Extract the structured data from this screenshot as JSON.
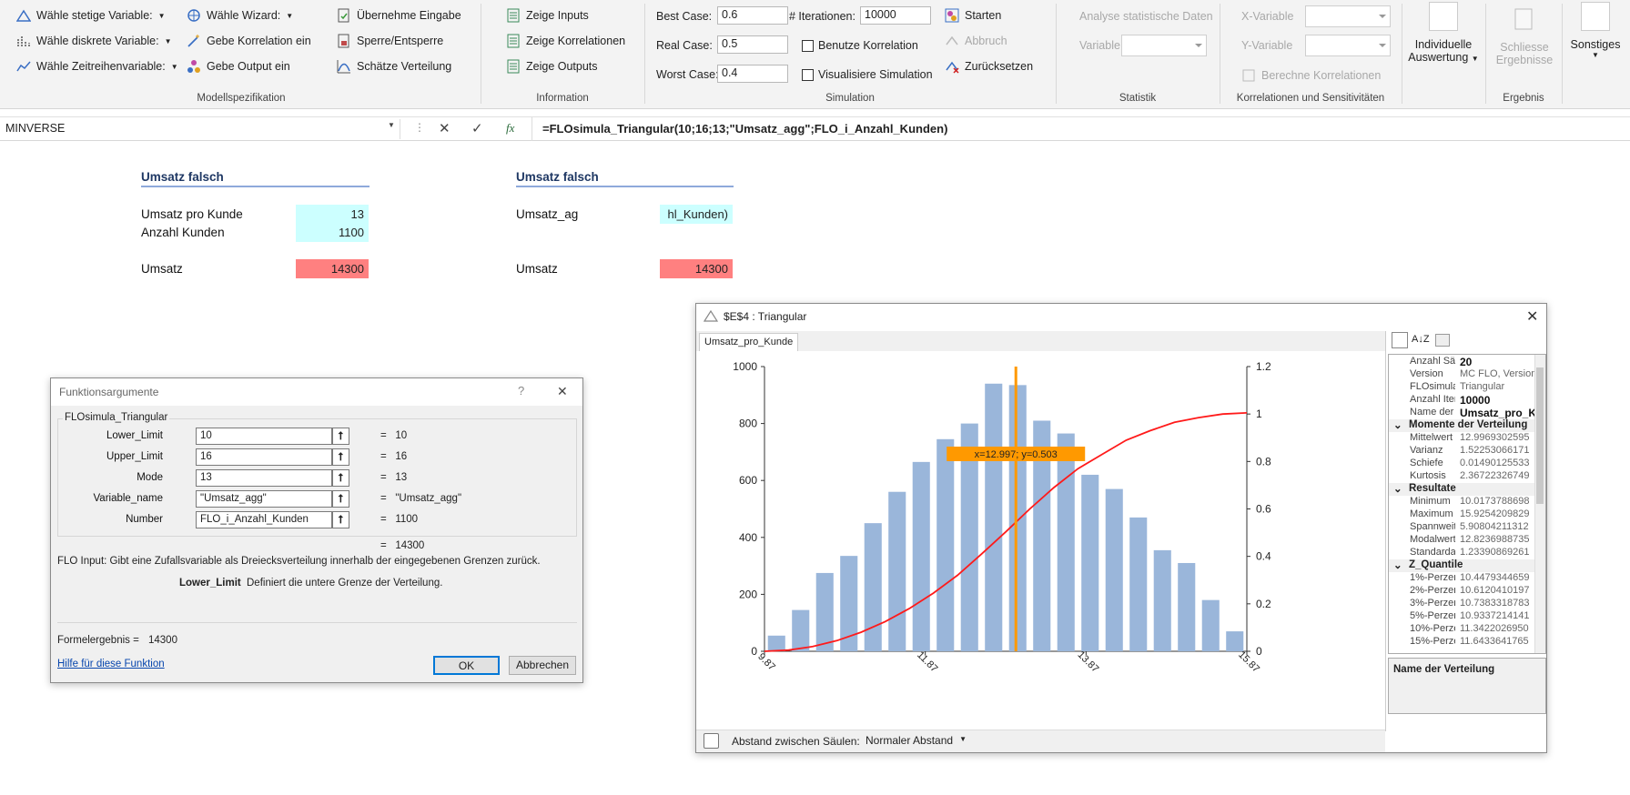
{
  "ribbon": {
    "col1": [
      "Wähle stetige Variable:",
      "Wähle diskrete Variable:",
      "Wähle Zeitreihenvariable:"
    ],
    "col2": [
      "Wähle Wizard:",
      "Gebe Korrelation ein",
      "Gebe Output ein"
    ],
    "col3": [
      "Übernehme Eingabe",
      "Sperre/Entsperre",
      "Schätze Verteilung"
    ],
    "col4": [
      "Zeige Inputs",
      "Zeige Korrelationen",
      "Zeige Outputs"
    ],
    "best_label": "Best Case:",
    "best_value": "0.6",
    "real_label": "Real Case:",
    "real_value": "0.5",
    "worst_label": "Worst Case:",
    "worst_value": "0.4",
    "iter_label": "# Iterationen:",
    "iter_value": "10000",
    "starten": "Starten",
    "abbruch": "Abbruch",
    "zuruecksetzen": "Zurücksetzen",
    "benutze_korrelation": "Benutze Korrelation",
    "visualisiere": "Visualisiere Simulation",
    "analyse": "Analyse statistische Daten",
    "variable": "Variable",
    "x_variable": "X-Variable",
    "y_variable": "Y-Variable",
    "berechne": "Berechne Korrelationen",
    "individuelle": "Individuelle",
    "auswertung": "Auswertung",
    "schliesse": "Schliesse",
    "ergebnisse": "Ergebnisse",
    "sonstiges": "Sonstiges",
    "groups": [
      "Modellspezifikation",
      "Information",
      "Simulation",
      "Statistik",
      "Korrelationen und Sensitivitäten",
      "Ergebnis"
    ]
  },
  "formula_bar": {
    "name_box": "MINVERSE",
    "fx": "fx",
    "formula": "=FLOsimula_Triangular(10;16;13;\"Umsatz_agg\";FLO_i_Anzahl_Kunden)"
  },
  "sheet": {
    "left": {
      "title": "Umsatz falsch",
      "r1_label": "Umsatz pro Kunde",
      "r1_value": "13",
      "r2_label": "Anzahl Kunden",
      "r2_value": "1100",
      "r3_label": "Umsatz",
      "r3_value": "14300"
    },
    "right": {
      "title": "Umsatz falsch",
      "r1_label": "Umsatz_ag",
      "r1_value": "hl_Kunden)",
      "r3_label": "Umsatz",
      "r3_value": "14300"
    }
  },
  "dialog": {
    "title": "Funktionsargumente",
    "help_q": "?",
    "close": "✕",
    "func": "FLOsimula_Triangular",
    "args": [
      {
        "label": "Lower_Limit",
        "value": "10",
        "result": "10"
      },
      {
        "label": "Upper_Limit",
        "value": "16",
        "result": "16"
      },
      {
        "label": "Mode",
        "value": "13",
        "result": "13"
      },
      {
        "label": "Variable_name",
        "value": "\"Umsatz_agg\"",
        "result": "\"Umsatz_agg\""
      },
      {
        "label": "Number",
        "value": "FLO_i_Anzahl_Kunden",
        "result": "1100"
      }
    ],
    "total": "14300",
    "desc": "FLO Input: Gibt eine Zufallsvariable als Dreiecksverteilung innerhalb der eingegebenen Grenzen zurück.",
    "arg_name": "Lower_Limit",
    "arg_desc": "Definiert die untere Grenze der Verteilung.",
    "formula_result_label": "Formelergebnis =",
    "formula_result": "14300",
    "help_link": "Hilfe für diese Funktion",
    "ok": "OK",
    "cancel": "Abbrechen"
  },
  "chart_window": {
    "title": "$E$4 : Triangular",
    "tab": "Umsatz_pro_Kunde",
    "tooltip": "x=12.997; y=0.503",
    "bottom_label": "Abstand zwischen Säulen:",
    "bottom_value": "Normaler Abstand",
    "desc_title": "Name der Verteilung",
    "props": [
      {
        "k": "Anzahl Säu",
        "v": "20",
        "bold": true
      },
      {
        "k": "Version",
        "v": "MC FLO, Version"
      },
      {
        "k": "FLOsimula",
        "v": "Triangular"
      },
      {
        "k": "Anzahl Iter",
        "v": "10000",
        "bold": true
      },
      {
        "k": "Name der V",
        "v": "Umsatz_pro_K",
        "bold": true
      },
      {
        "cat": "Momente der Verteilung"
      },
      {
        "k": "Mittelwert",
        "v": "12.9969302595"
      },
      {
        "k": "Varianz",
        "v": "1.52253066171"
      },
      {
        "k": "Schiefe",
        "v": "0.01490125533"
      },
      {
        "k": "Kurtosis",
        "v": "2.36722326749"
      },
      {
        "cat": "Resultate"
      },
      {
        "k": "Minimum",
        "v": "10.0173788698"
      },
      {
        "k": "Maximum",
        "v": "15.9254209829"
      },
      {
        "k": "Spannweite",
        "v": "5.90804211312"
      },
      {
        "k": "Modalwert",
        "v": "12.8236988735"
      },
      {
        "k": "Standardat",
        "v": "1.23390869261"
      },
      {
        "cat": "Z_Quantile"
      },
      {
        "k": "1%-Perzer",
        "v": "10.4479344659"
      },
      {
        "k": "2%-Perzer",
        "v": "10.6120410197"
      },
      {
        "k": "3%-Perzer",
        "v": "10.7383318783"
      },
      {
        "k": "5%-Perzer",
        "v": "10.9337214141"
      },
      {
        "k": "10%-Perze",
        "v": "11.3422026950"
      },
      {
        "k": "15%-Perze",
        "v": "11.6433641765"
      }
    ]
  },
  "chart_data": {
    "type": "bar",
    "xlim": [
      9.87,
      15.87
    ],
    "x_ticks": [
      "9.87",
      "11.87",
      "13.87",
      "15.87"
    ],
    "y_ticks": [
      "0",
      "200",
      "400",
      "600",
      "800",
      "1000"
    ],
    "y2_ticks": [
      "0",
      "0.2",
      "0.4",
      "0.6",
      "0.8",
      "1",
      "1.2"
    ],
    "ylim": [
      0,
      1000
    ],
    "y2lim": [
      0,
      1.2
    ],
    "bins": [
      10.17,
      10.47,
      10.77,
      11.07,
      11.37,
      11.67,
      11.97,
      12.27,
      12.57,
      12.87,
      13.17,
      13.47,
      13.77,
      14.07,
      14.37,
      14.67,
      14.97,
      15.27,
      15.57,
      15.87
    ],
    "values": [
      55,
      145,
      275,
      335,
      450,
      560,
      665,
      745,
      800,
      940,
      935,
      810,
      765,
      620,
      570,
      470,
      355,
      310,
      180,
      70
    ],
    "cdf": [
      0,
      0.005,
      0.02,
      0.045,
      0.08,
      0.125,
      0.18,
      0.245,
      0.32,
      0.41,
      0.503,
      0.6,
      0.69,
      0.77,
      0.83,
      0.89,
      0.93,
      0.965,
      0.985,
      1,
      1.005
    ],
    "marker_x": 12.997,
    "colors": {
      "bar": "#9ab6da",
      "cdf": "#ff1a1a",
      "marker": "#ff9900"
    }
  }
}
